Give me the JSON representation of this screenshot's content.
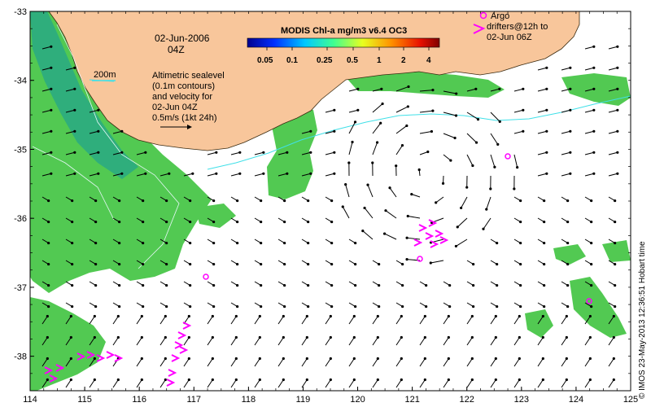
{
  "map": {
    "date": "02-Jun-2006",
    "time": "04Z",
    "isobath_label": "200m",
    "sealevel_note": [
      "Altimetric sealevel",
      "(0.1m contours)",
      "and velocity for",
      "02-Jun 04Z",
      "0.5m/s (1kt 24h)"
    ],
    "colorbar": {
      "title": "MODIS Chl-a mg/m3 v6.4 OC3",
      "tick_labels": [
        "0.05",
        "0.1",
        "0.25",
        "0.5",
        "1",
        "2",
        "4"
      ]
    },
    "argo_legend": [
      "Argo",
      "drifters@12h to",
      "02-Jun 06Z"
    ],
    "credit": "© IMOS 23-May-2013 12:36:51 Hobart time",
    "colors": {
      "land": "#f8c69b",
      "chl_green": "#4cd04c",
      "chl_teal": "#3cb48c",
      "drifter": "#ff00ff",
      "contour": "#40e0e8",
      "arrow": "#000000"
    },
    "axes": {
      "x_ticks": [
        "114",
        "115",
        "116",
        "117",
        "118",
        "119",
        "120",
        "121",
        "122",
        "123",
        "124",
        "125"
      ],
      "y_ticks": [
        "-33",
        "-34",
        "-35",
        "-36",
        "-37",
        "-38"
      ],
      "lon_range": [
        114,
        125
      ],
      "lat_range": [
        -38.5,
        -33
      ]
    }
  }
}
